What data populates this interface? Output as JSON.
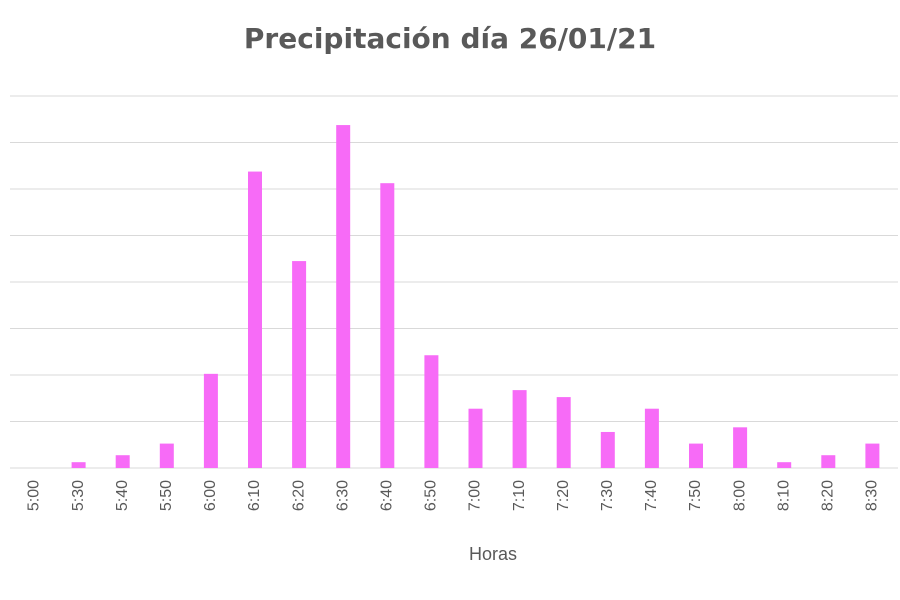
{
  "chart_data": {
    "type": "bar",
    "title": "Precipitación día 26/01/21",
    "xlabel": "Horas",
    "ylabel": "",
    "categories": [
      "5:00",
      "5:30",
      "5:40",
      "5:50",
      "6:00",
      "6:10",
      "6:20",
      "6:30",
      "6:40",
      "6:50",
      "7:00",
      "7:10",
      "7:20",
      "7:30",
      "7:40",
      "7:50",
      "8:00",
      "8:10",
      "8:20",
      "8:30"
    ],
    "values": [
      0,
      0.25,
      0.55,
      1.05,
      4.05,
      12.75,
      8.9,
      14.75,
      12.25,
      4.85,
      2.55,
      3.35,
      3.05,
      1.55,
      2.55,
      1.05,
      1.75,
      0.25,
      0.55,
      1.05
    ],
    "ylim": [
      0,
      16
    ],
    "y_gridlines": [
      0,
      2,
      4,
      6,
      8,
      10,
      12,
      14,
      16
    ],
    "y_tick_labels_shown": false,
    "grid": true,
    "bar_color": "#F76BF7",
    "grid_color": "#D9D9D9",
    "text_color": "#595959"
  }
}
